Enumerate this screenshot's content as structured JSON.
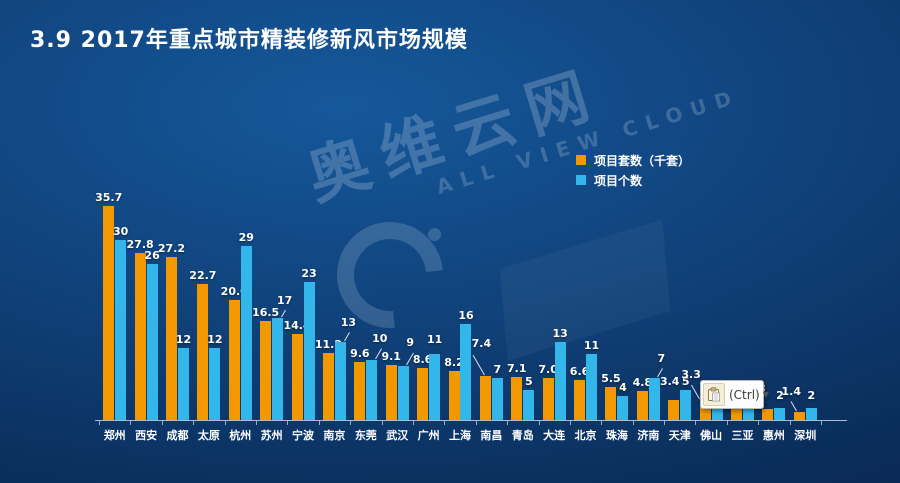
{
  "title": "3.9  2017年重点城市精装修新风市场规模",
  "legend": [
    {
      "label": "项目套数（千套）",
      "color": "#F39800"
    },
    {
      "label": "项目个数",
      "color": "#33B7EA"
    }
  ],
  "watermark": {
    "cn": "奥维云网",
    "en": "ALL VIEW CLOUD"
  },
  "popup": {
    "text": "(Ctrl)",
    "arrow": "▼",
    "icon": "clipboard-paste-icon"
  },
  "colors": {
    "background_top": "#15589b",
    "background_bottom": "#082548",
    "axis": "#C6D5E4",
    "label_text": "#FFFFFF"
  },
  "chart_data": {
    "type": "bar",
    "title": "3.9  2017年重点城市精装修新风市场规模",
    "xlabel": "",
    "ylabel": "",
    "ylim": [
      0,
      36
    ],
    "grid": false,
    "legend_position": "top-right",
    "categories": [
      "郑州",
      "西安",
      "成都",
      "太原",
      "杭州",
      "苏州",
      "宁波",
      "南京",
      "东莞",
      "武汉",
      "广州",
      "上海",
      "南昌",
      "青岛",
      "大连",
      "北京",
      "珠海",
      "济南",
      "天津",
      "佛山",
      "三亚",
      "惠州",
      "深圳"
    ],
    "series": [
      {
        "name": "项目套数（千套）",
        "color": "#F39800",
        "values": [
          35.7,
          27.8,
          27.2,
          22.7,
          20.0,
          16.5,
          14.4,
          11.2,
          9.6,
          9.1,
          8.6,
          8.2,
          7.4,
          7.1,
          7.0,
          6.6,
          5.5,
          4.8,
          3.4,
          3.3,
          2.9,
          1.8,
          1.4
        ],
        "labels": [
          "35.7",
          "27.8",
          "27.2",
          "22.7",
          "20.0",
          "16.5",
          "14.4",
          "11.2",
          "9.6",
          "9.1",
          "8.6",
          "8.2",
          "7.4",
          "7.1",
          "7.0",
          "6.6",
          "5.5",
          "4.8",
          "3.4",
          "3.3",
          "",
          "1.8",
          "1.4"
        ],
        "offsets": {
          "12": {
            "dx": -4,
            "dy": -24,
            "leader": true
          },
          "18": {
            "dx": -4,
            "dy": -10
          },
          "19": {
            "dx": -14,
            "dy": -17,
            "leader": true
          },
          "21": {
            "dx": -12,
            "dy": -12,
            "leader": true
          },
          "22": {
            "dx": -8,
            "dy": -12,
            "leader": true
          }
        }
      },
      {
        "name": "项目个数",
        "color": "#33B7EA",
        "values": [
          30,
          26,
          12,
          12,
          29,
          17,
          23,
          13,
          10,
          9,
          11,
          16,
          7,
          5,
          13,
          11,
          4,
          7,
          5,
          3.4,
          2.7,
          2,
          2
        ],
        "labels": [
          "30",
          "26",
          "12",
          "12",
          "29",
          "17",
          "23",
          "13",
          "10",
          "9",
          "11",
          "16",
          "7",
          "5",
          "13",
          "11",
          "4",
          "7",
          "5",
          "",
          "",
          "2",
          "2"
        ],
        "offsets": {
          "5": {
            "dx": 7,
            "dy": -9,
            "leader": true
          },
          "7": {
            "dx": 8,
            "dy": -11,
            "leader": true
          },
          "8": {
            "dx": 8,
            "dy": -13,
            "leader": true
          },
          "9": {
            "dx": 7,
            "dy": -15,
            "leader": true
          },
          "10": {
            "dy": -6
          },
          "17": {
            "dx": 7,
            "dy": -11,
            "leader": true
          },
          "21": {
            "dy": -4
          },
          "22": {
            "dy": -4
          }
        }
      }
    ],
    "note": "项目个数 label of 佛山 and both labels of 三亚 are hidden behind the paste-options (Ctrl) popup"
  }
}
